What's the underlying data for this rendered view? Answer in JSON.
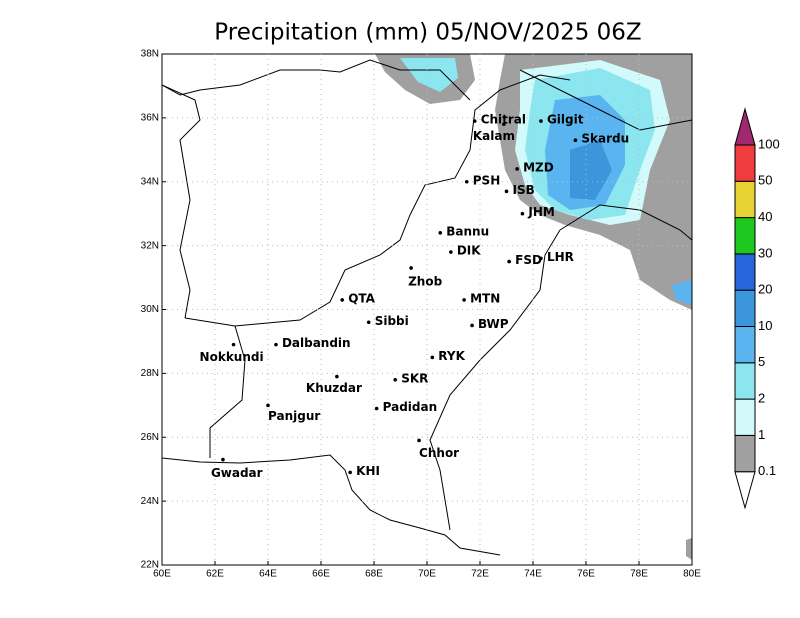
{
  "title": "Precipitation (mm) 05/NOV/2025 06Z",
  "lon_lim": [
    60,
    80
  ],
  "lat_lim": [
    22,
    38
  ],
  "xticks": [
    {
      "value": 60,
      "label": "60E"
    },
    {
      "value": 62,
      "label": "62E"
    },
    {
      "value": 64,
      "label": "64E"
    },
    {
      "value": 66,
      "label": "66E"
    },
    {
      "value": 68,
      "label": "68E"
    },
    {
      "value": 70,
      "label": "70E"
    },
    {
      "value": 72,
      "label": "72E"
    },
    {
      "value": 74,
      "label": "74E"
    },
    {
      "value": 76,
      "label": "76E"
    },
    {
      "value": 78,
      "label": "78E"
    },
    {
      "value": 80,
      "label": "80E"
    }
  ],
  "yticks": [
    {
      "value": 22,
      "label": "22N"
    },
    {
      "value": 24,
      "label": "24N"
    },
    {
      "value": 26,
      "label": "26N"
    },
    {
      "value": 28,
      "label": "28N"
    },
    {
      "value": 30,
      "label": "30N"
    },
    {
      "value": 32,
      "label": "32N"
    },
    {
      "value": 34,
      "label": "34N"
    },
    {
      "value": 36,
      "label": "36N"
    },
    {
      "value": 38,
      "label": "38N"
    }
  ],
  "grid": true,
  "cities": [
    {
      "label": "Chitral",
      "lon": 71.8,
      "lat": 35.9
    },
    {
      "label": "Gilgit",
      "lon": 74.3,
      "lat": 35.9
    },
    {
      "label": "Kalam",
      "lon": 72.9,
      "lat": 35.8
    },
    {
      "label": "Skardu",
      "lon": 75.6,
      "lat": 35.3
    },
    {
      "label": "MZD",
      "lon": 73.4,
      "lat": 34.4
    },
    {
      "label": "PSH",
      "lon": 71.5,
      "lat": 34.0
    },
    {
      "label": "ISB",
      "lon": 73.0,
      "lat": 33.7
    },
    {
      "label": "JHM",
      "lon": 73.6,
      "lat": 33.0
    },
    {
      "label": "Bannu",
      "lon": 70.5,
      "lat": 32.4
    },
    {
      "label": "DIK",
      "lon": 70.9,
      "lat": 31.8
    },
    {
      "label": "FSD",
      "lon": 73.1,
      "lat": 31.5
    },
    {
      "label": "LHR",
      "lon": 74.3,
      "lat": 31.6
    },
    {
      "label": "Zhob",
      "lon": 69.4,
      "lat": 31.3
    },
    {
      "label": "QTA",
      "lon": 66.8,
      "lat": 30.3
    },
    {
      "label": "MTN",
      "lon": 71.4,
      "lat": 30.3
    },
    {
      "label": "Sibbi",
      "lon": 67.8,
      "lat": 29.6
    },
    {
      "label": "BWP",
      "lon": 71.7,
      "lat": 29.5
    },
    {
      "label": "Nokkundi",
      "lon": 62.7,
      "lat": 28.9
    },
    {
      "label": "Dalbandin",
      "lon": 64.3,
      "lat": 28.9
    },
    {
      "label": "RYK",
      "lon": 70.2,
      "lat": 28.5
    },
    {
      "label": "Khuzdar",
      "lon": 66.6,
      "lat": 27.9
    },
    {
      "label": "SKR",
      "lon": 68.8,
      "lat": 27.8
    },
    {
      "label": "Panjgur",
      "lon": 64.0,
      "lat": 27.0
    },
    {
      "label": "Padidan",
      "lon": 68.1,
      "lat": 26.9
    },
    {
      "label": "Chhor",
      "lon": 69.7,
      "lat": 25.9
    },
    {
      "label": "KHI",
      "lon": 67.1,
      "lat": 24.9
    },
    {
      "label": "Gwadar",
      "lon": 62.3,
      "lat": 25.3
    }
  ],
  "colorbar": {
    "levels": [
      0.1,
      1,
      2,
      5,
      10,
      20,
      30,
      40,
      50,
      100
    ],
    "colors": [
      "#ffffff",
      "#a0a0a0",
      "#d2fafa",
      "#8ce6f0",
      "#5ab4f0",
      "#3c96dc",
      "#2864dc",
      "#1ec81e",
      "#e6d232",
      "#f03c3c",
      "#a0286e"
    ]
  }
}
